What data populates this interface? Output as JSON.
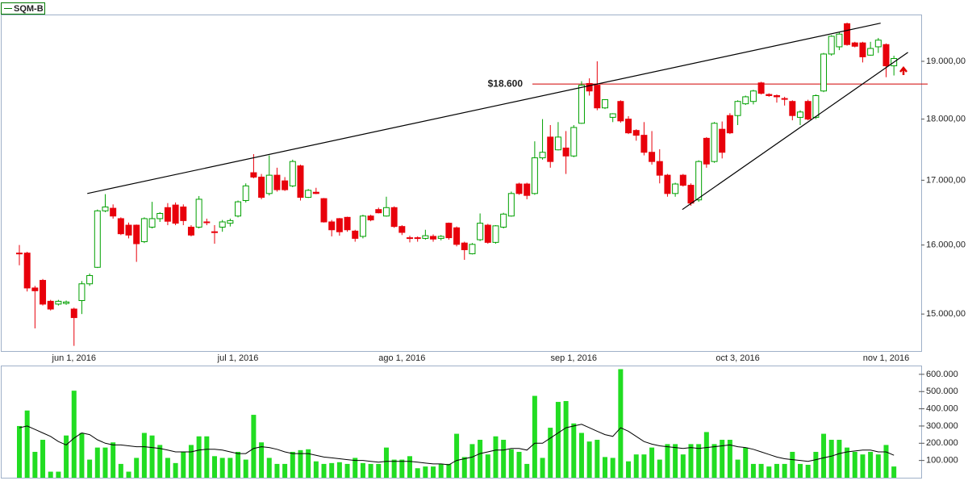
{
  "chart_data": [
    {
      "type": "candlestick",
      "categories": [
        null,
        null,
        null,
        null,
        null,
        null,
        null,
        "jun 1, 2016",
        null,
        null,
        null,
        null,
        null,
        null,
        null,
        null,
        null,
        null,
        null,
        null,
        null,
        null,
        null,
        null,
        null,
        null,
        null,
        null,
        "jul 1, 2016",
        null,
        null,
        null,
        null,
        null,
        null,
        null,
        null,
        null,
        null,
        null,
        null,
        null,
        null,
        null,
        null,
        null,
        null,
        null,
        null,
        "ago 1, 2016",
        null,
        null,
        null,
        null,
        null,
        null,
        null,
        null,
        null,
        null,
        null,
        null,
        null,
        null,
        null,
        null,
        null,
        null,
        null,
        null,
        null,
        "sep 1, 2016",
        null,
        null,
        null,
        null,
        null,
        null,
        null,
        null,
        null,
        null,
        null,
        null,
        null,
        null,
        null,
        null,
        null,
        null,
        null,
        null,
        "oct 3, 2016",
        null,
        null,
        null,
        null,
        null,
        null,
        null,
        null,
        null,
        null,
        null,
        null,
        null,
        null,
        null,
        null,
        null,
        null,
        "nov 1, 2016",
        null
      ],
      "series": [
        {
          "name": "SQM-B",
          "color": "#007a00",
          "up_color": "#00a000",
          "down_color": "#e8000b",
          "open": [
            15880,
            15880,
            15370,
            15480,
            15180,
            15140,
            15150,
            15070,
            15190,
            15430,
            15670,
            16520,
            16560,
            16400,
            16300,
            16300,
            16050,
            16270,
            16400,
            16570,
            16610,
            16580,
            16270,
            16270,
            16350,
            16200,
            16270,
            16330,
            16440,
            16680,
            17120,
            17050,
            16790,
            17080,
            16990,
            16910,
            17230,
            16730,
            16810,
            16710,
            16350,
            16400,
            16420,
            16210,
            16130,
            16440,
            16540,
            16440,
            16570,
            16280,
            16110,
            16110,
            16100,
            16130,
            16100,
            16330,
            16260,
            16030,
            15870,
            16080,
            16300,
            16040,
            16270,
            16440,
            16940,
            16940,
            16790,
            17360,
            17700,
            17490,
            17520,
            17390,
            17930,
            18610,
            18580,
            18190,
            18030,
            18300,
            18000,
            17810,
            17730,
            17450,
            17300,
            17080,
            16790,
            17080,
            16920,
            16690,
            17680,
            17300,
            17830,
            18060,
            18060,
            18260,
            18300,
            18620,
            18420,
            18400,
            18350,
            18300,
            18030,
            18300,
            18030,
            18480,
            19130,
            19260,
            19680,
            19330,
            19330,
            19110,
            19260,
            19300,
            18920
          ],
          "high": [
            16000,
            15900,
            15400,
            15500,
            15200,
            15200,
            15190,
            15090,
            15470,
            15580,
            16540,
            16780,
            16620,
            16420,
            16340,
            16310,
            16420,
            16660,
            16500,
            16640,
            16650,
            16620,
            16300,
            16750,
            16400,
            16300,
            16380,
            16400,
            16680,
            16950,
            17420,
            17100,
            17400,
            17200,
            17050,
            17330,
            17250,
            16860,
            16880,
            16720,
            16380,
            16410,
            16430,
            16230,
            16460,
            16460,
            16570,
            16740,
            16590,
            16300,
            16140,
            16130,
            16230,
            16160,
            16150,
            16340,
            16280,
            16050,
            16030,
            16480,
            16320,
            16300,
            16490,
            16820,
            16960,
            16960,
            17630,
            18000,
            17900,
            17950,
            17800,
            17900,
            18650,
            18700,
            19000,
            18340,
            18100,
            18320,
            18050,
            17830,
            17950,
            17800,
            17500,
            17100,
            16960,
            17100,
            16950,
            17320,
            17700,
            17950,
            17960,
            18100,
            18320,
            18400,
            18500,
            18640,
            18440,
            18420,
            18380,
            18320,
            18150,
            18330,
            18420,
            19150,
            19470,
            19520,
            19700,
            19350,
            19350,
            19350,
            19420,
            19320,
            19100
          ],
          "low": [
            15700,
            15320,
            14800,
            15120,
            15050,
            15120,
            15130,
            14560,
            15000,
            15400,
            15660,
            16500,
            16400,
            16150,
            16100,
            15750,
            16030,
            16250,
            16350,
            16300,
            16300,
            16300,
            16130,
            16250,
            16300,
            16020,
            16200,
            16280,
            16420,
            16650,
            17030,
            16700,
            16760,
            16820,
            16830,
            16890,
            16680,
            16720,
            16780,
            16340,
            16130,
            16140,
            16200,
            16050,
            16100,
            16360,
            16480,
            16430,
            16260,
            16150,
            16040,
            16050,
            16080,
            16050,
            16070,
            16080,
            15980,
            15780,
            15860,
            16060,
            16020,
            16020,
            16250,
            16430,
            16770,
            16700,
            16770,
            17330,
            17200,
            17480,
            17100,
            17370,
            17920,
            18400,
            18150,
            18170,
            17950,
            17940,
            17750,
            17640,
            17400,
            17250,
            16950,
            16740,
            16740,
            16900,
            16600,
            16660,
            17200,
            17280,
            17350,
            17750,
            17900,
            18240,
            18250,
            18420,
            18380,
            18280,
            18230,
            17980,
            17900,
            17980,
            18000,
            18460,
            19100,
            19200,
            19280,
            19250,
            18980,
            19100,
            19150,
            18720,
            18750
          ],
          "close": [
            15880,
            15370,
            15330,
            15140,
            15070,
            15180,
            15170,
            14950,
            15430,
            15550,
            16520,
            16580,
            16440,
            16170,
            16150,
            16020,
            16400,
            16400,
            16480,
            16360,
            16330,
            16370,
            16150,
            16700,
            16340,
            16190,
            16350,
            16370,
            16660,
            16910,
            17050,
            16730,
            17080,
            16850,
            16850,
            17300,
            16730,
            16840,
            16790,
            16350,
            16230,
            16200,
            16230,
            16100,
            16440,
            16380,
            16490,
            16570,
            16280,
            16190,
            16100,
            16100,
            16140,
            16090,
            16130,
            16110,
            16010,
            15930,
            16010,
            16330,
            16040,
            16290,
            16470,
            16790,
            16790,
            16760,
            17360,
            17450,
            17300,
            17700,
            17390,
            17860,
            18580,
            18480,
            18190,
            18330,
            18090,
            17970,
            17770,
            17730,
            17450,
            17300,
            17080,
            16790,
            16940,
            16920,
            16640,
            17300,
            17260,
            17930,
            17450,
            17770,
            18300,
            18380,
            18480,
            18440,
            18400,
            18380,
            18350,
            18060,
            18120,
            18000,
            18400,
            19130,
            19450,
            19490,
            19300,
            19270,
            19080,
            19230,
            19380,
            18920,
            19050
          ]
        }
      ],
      "ylim": [
        14490,
        19850
      ],
      "log_scale": true,
      "grid": false,
      "legend": "top-left",
      "yticks": [
        {
          "value": 15000,
          "label": "15.000,00"
        },
        {
          "value": 16000,
          "label": "16.000,00"
        },
        {
          "value": 17000,
          "label": "17.000,00"
        },
        {
          "value": 18000,
          "label": "18.000,00"
        },
        {
          "value": 19000,
          "label": "19.000,00"
        }
      ],
      "hline": {
        "value": 18600,
        "label": "$18.600",
        "color": "#d00000"
      },
      "trendlines": [
        {
          "x": [
            8.7,
            110.3
          ],
          "values": [
            16790,
            19690
          ],
          "color": "#000000"
        },
        {
          "x": [
            84.9,
            113.8
          ],
          "values": [
            16540,
            19160
          ],
          "color": "#000000"
        }
      ]
    },
    {
      "type": "bar",
      "series": [
        {
          "color": "#22dd22",
          "values": [
            300000,
            390000,
            150000,
            220000,
            35000,
            35000,
            245000,
            505000,
            260000,
            105000,
            175000,
            175000,
            205000,
            80000,
            35000,
            115000,
            260000,
            245000,
            190000,
            115000,
            85000,
            150000,
            190000,
            240000,
            240000,
            125000,
            115000,
            115000,
            150000,
            105000,
            365000,
            205000,
            115000,
            80000,
            80000,
            150000,
            160000,
            165000,
            95000,
            80000,
            85000,
            90000,
            80000,
            115000,
            85000,
            80000,
            80000,
            175000,
            105000,
            105000,
            125000,
            55000,
            65000,
            65000,
            80000,
            80000,
            255000,
            120000,
            195000,
            220000,
            135000,
            240000,
            220000,
            165000,
            150000,
            80000,
            475000,
            115000,
            290000,
            440000,
            445000,
            315000,
            260000,
            210000,
            220000,
            120000,
            115000,
            630000,
            95000,
            135000,
            135000,
            175000,
            105000,
            195000,
            195000,
            135000,
            195000,
            195000,
            265000,
            195000,
            220000,
            220000,
            105000,
            175000,
            80000,
            80000,
            65000,
            80000,
            80000,
            150000,
            80000,
            75000,
            150000,
            255000,
            220000,
            220000,
            175000,
            150000,
            135000,
            150000,
            135000,
            190000,
            65000
          ]
        },
        {
          "type": "line",
          "color": "#000000",
          "values": [
            290000,
            300000,
            280000,
            260000,
            240000,
            210000,
            190000,
            230000,
            260000,
            250000,
            220000,
            200000,
            190000,
            190000,
            185000,
            180000,
            180000,
            175000,
            170000,
            160000,
            150000,
            150000,
            150000,
            160000,
            165000,
            165000,
            160000,
            150000,
            140000,
            140000,
            170000,
            180000,
            175000,
            165000,
            150000,
            140000,
            140000,
            140000,
            130000,
            120000,
            115000,
            110000,
            105000,
            100000,
            100000,
            95000,
            90000,
            95000,
            95000,
            95000,
            95000,
            90000,
            85000,
            80000,
            80000,
            75000,
            100000,
            110000,
            120000,
            140000,
            150000,
            160000,
            160000,
            170000,
            170000,
            160000,
            200000,
            200000,
            230000,
            260000,
            290000,
            300000,
            310000,
            290000,
            270000,
            250000,
            240000,
            290000,
            270000,
            240000,
            210000,
            195000,
            185000,
            180000,
            175000,
            170000,
            175000,
            170000,
            175000,
            180000,
            185000,
            190000,
            180000,
            175000,
            165000,
            150000,
            135000,
            120000,
            110000,
            105000,
            100000,
            95000,
            105000,
            115000,
            125000,
            140000,
            150000,
            155000,
            160000,
            160000,
            150000,
            150000,
            130000
          ]
        }
      ],
      "ylim": [
        0,
        651000
      ],
      "yticks": [
        {
          "value": 100000,
          "label": "100.000"
        },
        {
          "value": 200000,
          "label": "200.000"
        },
        {
          "value": 300000,
          "label": "300.000"
        },
        {
          "value": 400000,
          "label": "400.000"
        },
        {
          "value": 500000,
          "label": "500.000"
        },
        {
          "value": 600000,
          "label": "600.000"
        }
      ]
    }
  ]
}
